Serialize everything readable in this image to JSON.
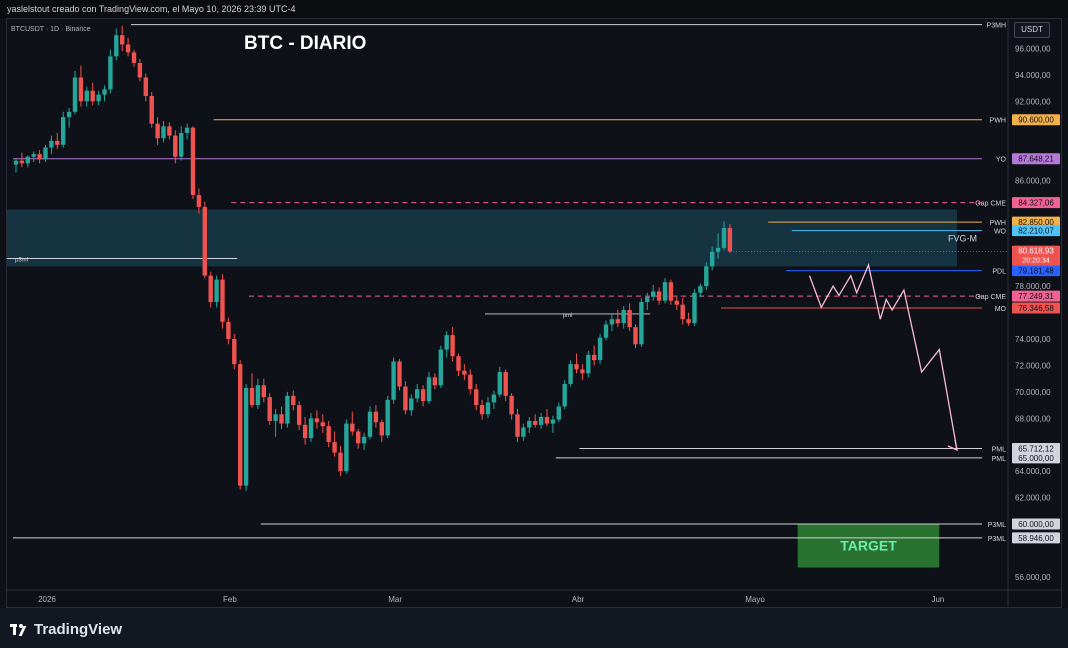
{
  "header": {
    "text": "yaslelstout creado con TradingView.com, el Mayo 10, 2026 23:39 UTC-4"
  },
  "chart": {
    "symbol_label": "BTCUSDT · 1D · Binance",
    "title": "BTC - DIARIO",
    "currency_button": "USDT",
    "fvg_label": "FVG-M",
    "pml_mid_label": "pml",
    "p3ml_left_label": "p3ml",
    "target_label": "TARGET"
  },
  "colors": {
    "up": "#26a69a",
    "down": "#ef5350",
    "background": "#0f1118",
    "fvg_zone": "#17394a",
    "target_zone": "#2e7d32",
    "target_text": "#69f0ae",
    "projection": "#f8bbd0"
  },
  "chart_data": {
    "type": "candlestick",
    "ylim": [
      55000,
      98000
    ],
    "y_ticks": [
      {
        "value": 96000,
        "label": "96.000,00"
      },
      {
        "value": 94000,
        "label": "94.000,00"
      },
      {
        "value": 92000,
        "label": "92.000,00"
      },
      {
        "value": 86000,
        "label": "86.000,00"
      },
      {
        "value": 78000,
        "label": "78.000,00"
      },
      {
        "value": 74000,
        "label": "74.000,00"
      },
      {
        "value": 72000,
        "label": "72.000,00"
      },
      {
        "value": 70000,
        "label": "70.000,00"
      },
      {
        "value": 68000,
        "label": "68.000,00"
      },
      {
        "value": 64000,
        "label": "64.000,00"
      },
      {
        "value": 62000,
        "label": "62.000,00"
      },
      {
        "value": 56000,
        "label": "56.000,00"
      }
    ],
    "x_ticks": [
      {
        "label": "2026",
        "day": 0
      },
      {
        "label": "Feb",
        "day": 31
      },
      {
        "label": "Mar",
        "day": 59
      },
      {
        "label": "Abr",
        "day": 90
      },
      {
        "label": "Mayo",
        "day": 120
      },
      {
        "label": "Jun",
        "day": 151
      }
    ],
    "levels": [
      {
        "label": "P3MH",
        "value": 97800,
        "price_label": "",
        "color": "#d1d4dc",
        "style": "solid",
        "from_day": 20,
        "badge_bg": ""
      },
      {
        "label": "PWH",
        "value": 90600,
        "price_label": "90.600,00",
        "color": "#f0b04a",
        "style": "solid",
        "from_day": 34,
        "badge_bg": "#f0b04a"
      },
      {
        "label": "YO",
        "value": 87648.21,
        "price_label": "87.648,21",
        "color": "#b779d8",
        "style": "solid",
        "from_day": 0,
        "badge_bg": "#b779d8"
      },
      {
        "label": "Gap CME",
        "value": 84327.06,
        "price_label": "84.327,06",
        "color": "#f06292",
        "style": "dashed",
        "from_day": 37,
        "badge_bg": "#f06292"
      },
      {
        "label": "PWH",
        "value": 82850,
        "price_label": "82.850,00",
        "color": "#f0b04a",
        "style": "solid",
        "from_day": 128,
        "badge_bg": "#f0b04a"
      },
      {
        "label": "WO",
        "value": 82210.07,
        "price_label": "82.210,07",
        "color": "#4fc3f7",
        "style": "solid",
        "from_day": 132,
        "badge_bg": "#4fc3f7"
      },
      {
        "label": "PDL",
        "value": 79181.48,
        "price_label": "79.181,48",
        "color": "#2962ff",
        "style": "solid",
        "from_day": 131,
        "badge_bg": "#2962ff"
      },
      {
        "label": "Gap CME",
        "value": 77249.31,
        "price_label": "77.249,31",
        "color": "#f06292",
        "style": "dashed",
        "from_day": 40,
        "badge_bg": "#f06292"
      },
      {
        "label": "MO",
        "value": 76346.58,
        "price_label": "76.346,58",
        "color": "#ef5350",
        "style": "solid",
        "from_day": 120,
        "badge_bg": "#ef5350"
      },
      {
        "label": "PML",
        "value": 65712.12,
        "price_label": "65.712,12",
        "color": "#d1d4dc",
        "style": "solid",
        "from_day": 96,
        "badge_bg": "#d1d4dc"
      },
      {
        "label": "PML",
        "value": 65000,
        "price_label": "65.000,00",
        "color": "#d1d4dc",
        "style": "solid",
        "from_day": 92,
        "badge_bg": "#d1d4dc"
      },
      {
        "label": "P3ML",
        "value": 60000,
        "price_label": "60.000,00",
        "color": "#d1d4dc",
        "style": "solid",
        "from_day": 42,
        "badge_bg": "#d1d4dc"
      },
      {
        "label": "P3ML",
        "value": 58946,
        "price_label": "58.946,00",
        "color": "#d1d4dc",
        "style": "solid",
        "from_day": 0,
        "badge_bg": "#d1d4dc"
      }
    ],
    "current_price": {
      "value": 80618.93,
      "label": "80.618,93",
      "timer": "20:20:34",
      "color": "#ef5350"
    },
    "fvg_zone": {
      "top": 83800,
      "bottom": 79500,
      "from_day": 0,
      "to_day": 160
    },
    "p3ml_line": {
      "value": 80100,
      "from_day": 0,
      "to_day": 38
    },
    "pml_line": {
      "value": 75900,
      "from_day": 80,
      "to_day": 108
    },
    "target_zone": {
      "top": 60000,
      "bottom": 56700,
      "from_day": 133,
      "to_day": 157
    },
    "projection_path": [
      {
        "day": 135,
        "value": 78800
      },
      {
        "day": 137,
        "value": 76400
      },
      {
        "day": 139,
        "value": 78000
      },
      {
        "day": 140,
        "value": 77300
      },
      {
        "day": 142,
        "value": 78800
      },
      {
        "day": 143,
        "value": 77500
      },
      {
        "day": 145,
        "value": 79600
      },
      {
        "day": 147,
        "value": 75500
      },
      {
        "day": 148,
        "value": 77000
      },
      {
        "day": 149,
        "value": 76200
      },
      {
        "day": 151,
        "value": 77700
      },
      {
        "day": 154,
        "value": 71500
      },
      {
        "day": 157,
        "value": 73200
      },
      {
        "day": 160,
        "value": 65600
      }
    ],
    "candles": [
      [
        87200,
        87600,
        86600,
        87500
      ],
      [
        87500,
        88100,
        87000,
        87300
      ],
      [
        87300,
        87900,
        87000,
        87800
      ],
      [
        87800,
        88200,
        87400,
        88000
      ],
      [
        88000,
        88300,
        87300,
        87600
      ],
      [
        87600,
        88700,
        87400,
        88500
      ],
      [
        88500,
        89400,
        88000,
        89000
      ],
      [
        89000,
        89600,
        88400,
        88700
      ],
      [
        88700,
        91200,
        88500,
        90800
      ],
      [
        90800,
        91500,
        90000,
        91200
      ],
      [
        91200,
        94300,
        91000,
        93800
      ],
      [
        93800,
        94700,
        91600,
        92000
      ],
      [
        92000,
        93100,
        91600,
        92800
      ],
      [
        92800,
        93400,
        91700,
        92000
      ],
      [
        92000,
        92800,
        91700,
        92500
      ],
      [
        92500,
        93200,
        92000,
        92900
      ],
      [
        92900,
        95900,
        92600,
        95400
      ],
      [
        95400,
        97500,
        95100,
        97000
      ],
      [
        97000,
        97700,
        95800,
        96300
      ],
      [
        96300,
        96800,
        95400,
        95700
      ],
      [
        95700,
        95900,
        94600,
        94900
      ],
      [
        94900,
        95200,
        93500,
        93800
      ],
      [
        93800,
        94100,
        92000,
        92400
      ],
      [
        92400,
        92700,
        90000,
        90300
      ],
      [
        90300,
        90800,
        88700,
        89200
      ],
      [
        89200,
        90500,
        88900,
        90100
      ],
      [
        90100,
        90400,
        89100,
        89400
      ],
      [
        89400,
        89800,
        87300,
        87800
      ],
      [
        87800,
        90100,
        87500,
        89600
      ],
      [
        89600,
        90300,
        89100,
        90000
      ],
      [
        90000,
        90100,
        84600,
        84900
      ],
      [
        84900,
        85400,
        83500,
        84000
      ],
      [
        84000,
        84400,
        78600,
        78800
      ],
      [
        78800,
        79100,
        76400,
        76800
      ],
      [
        76800,
        78800,
        76400,
        78500
      ],
      [
        78500,
        78900,
        74800,
        75300
      ],
      [
        75300,
        75600,
        73600,
        74000
      ],
      [
        74000,
        74400,
        71700,
        72100
      ],
      [
        72100,
        72400,
        62600,
        62900
      ],
      [
        62900,
        70600,
        62500,
        70300
      ],
      [
        70300,
        71400,
        68800,
        69000
      ],
      [
        69000,
        71000,
        68700,
        70500
      ],
      [
        70500,
        71000,
        69200,
        69600
      ],
      [
        69600,
        69900,
        67500,
        67800
      ],
      [
        67800,
        68700,
        66600,
        68300
      ],
      [
        68300,
        68900,
        67200,
        67600
      ],
      [
        67600,
        70000,
        67300,
        69700
      ],
      [
        69700,
        70100,
        68600,
        69000
      ],
      [
        69000,
        69300,
        67100,
        67500
      ],
      [
        67500,
        68100,
        66000,
        66500
      ],
      [
        66500,
        68400,
        66200,
        68000
      ],
      [
        68000,
        68600,
        67200,
        67700
      ],
      [
        67700,
        68300,
        66900,
        67400
      ],
      [
        67400,
        67800,
        65800,
        66200
      ],
      [
        66200,
        67000,
        65100,
        65400
      ],
      [
        65400,
        65900,
        63600,
        64000
      ],
      [
        64000,
        67900,
        63800,
        67600
      ],
      [
        67600,
        68500,
        66700,
        67000
      ],
      [
        67000,
        67200,
        65700,
        66100
      ],
      [
        66100,
        66900,
        65600,
        66600
      ],
      [
        66600,
        68900,
        66400,
        68500
      ],
      [
        68500,
        69000,
        67300,
        67700
      ],
      [
        67700,
        67900,
        66200,
        66700
      ],
      [
        66700,
        69700,
        66500,
        69400
      ],
      [
        69400,
        72600,
        69100,
        72300
      ],
      [
        72300,
        72500,
        70100,
        70400
      ],
      [
        70400,
        70800,
        68300,
        68600
      ],
      [
        68600,
        69800,
        68200,
        69500
      ],
      [
        69500,
        70600,
        69200,
        70200
      ],
      [
        70200,
        70500,
        68900,
        69300
      ],
      [
        69300,
        71500,
        69100,
        71100
      ],
      [
        71100,
        71400,
        70200,
        70500
      ],
      [
        70500,
        73500,
        70300,
        73200
      ],
      [
        73200,
        74600,
        72600,
        74300
      ],
      [
        74300,
        74900,
        72300,
        72700
      ],
      [
        72700,
        72900,
        71200,
        71600
      ],
      [
        71600,
        72100,
        70900,
        71300
      ],
      [
        71300,
        71700,
        69800,
        70200
      ],
      [
        70200,
        70600,
        68600,
        69000
      ],
      [
        69000,
        69400,
        67900,
        68300
      ],
      [
        68300,
        69600,
        68000,
        69200
      ],
      [
        69200,
        70100,
        68700,
        69800
      ],
      [
        69800,
        71900,
        69600,
        71500
      ],
      [
        71500,
        71700,
        69300,
        69700
      ],
      [
        69700,
        69900,
        67900,
        68300
      ],
      [
        68300,
        68700,
        66200,
        66600
      ],
      [
        66600,
        67600,
        66300,
        67300
      ],
      [
        67300,
        68100,
        66900,
        67800
      ],
      [
        67800,
        68300,
        67300,
        67500
      ],
      [
        67500,
        68400,
        67200,
        68100
      ],
      [
        68100,
        68700,
        67400,
        67600
      ],
      [
        67600,
        68200,
        66900,
        67900
      ],
      [
        67900,
        69200,
        67700,
        68900
      ],
      [
        68900,
        70900,
        68700,
        70600
      ],
      [
        70600,
        72400,
        70400,
        72100
      ],
      [
        72100,
        72900,
        71400,
        71700
      ],
      [
        71700,
        72100,
        70900,
        71400
      ],
      [
        71400,
        73100,
        71100,
        72800
      ],
      [
        72800,
        73500,
        72000,
        72400
      ],
      [
        72400,
        74400,
        72100,
        74100
      ],
      [
        74100,
        75400,
        73900,
        75100
      ],
      [
        75100,
        75900,
        74600,
        75500
      ],
      [
        75500,
        76200,
        74900,
        75200
      ],
      [
        75200,
        76500,
        74800,
        76200
      ],
      [
        76200,
        76700,
        74600,
        74900
      ],
      [
        74900,
        75100,
        73300,
        73600
      ],
      [
        73600,
        77100,
        73400,
        76800
      ],
      [
        76800,
        77500,
        76200,
        77200
      ],
      [
        77200,
        78100,
        76900,
        77600
      ],
      [
        77600,
        77900,
        76600,
        76900
      ],
      [
        76900,
        78600,
        76700,
        78300
      ],
      [
        78300,
        78500,
        76600,
        76900
      ],
      [
        76900,
        77300,
        76200,
        76600
      ],
      [
        76600,
        77100,
        75100,
        75500
      ],
      [
        75500,
        76000,
        75000,
        75200
      ],
      [
        75200,
        77800,
        75000,
        77500
      ],
      [
        77500,
        78200,
        77200,
        78000
      ],
      [
        78000,
        79800,
        77700,
        79500
      ],
      [
        79500,
        81000,
        79200,
        80600
      ],
      [
        80600,
        82000,
        80100,
        80900
      ],
      [
        80900,
        82900,
        80700,
        82400
      ],
      [
        82400,
        82700,
        80500,
        80618.93
      ]
    ]
  }
}
